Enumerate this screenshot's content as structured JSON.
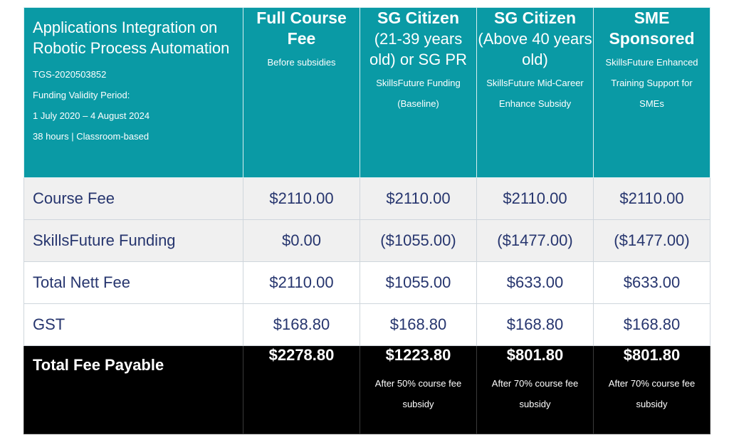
{
  "header": {
    "course_title": "Applications Integration on Robotic Process Automation",
    "course_code": "TGS-2020503852",
    "funding_validity_label": "Funding Validity Period:",
    "funding_validity_dates": "1 July 2020 – 4 August 2024",
    "duration_mode": "38 hours | Classroom-based",
    "columns": [
      {
        "title": "Full Course Fee",
        "subtitle": "",
        "note": "Before subsidies"
      },
      {
        "title": "SG Citizen",
        "subtitle": "(21-39 years old) or SG PR",
        "note": "SkillsFuture Funding (Baseline)"
      },
      {
        "title": "SG Citizen",
        "subtitle": "(Above 40 years old)",
        "note": "SkillsFuture Mid-Career Enhance Subsidy"
      },
      {
        "title": "SME Sponsored",
        "subtitle": "",
        "note": "SkillsFuture Enhanced Training Support for SMEs"
      }
    ]
  },
  "rows": [
    {
      "label": "Course Fee",
      "values": [
        "$2110.00",
        "$2110.00",
        "$2110.00",
        "$2110.00"
      ]
    },
    {
      "label": "SkillsFuture Funding",
      "values": [
        "$0.00",
        "($1055.00)",
        "($1477.00)",
        "($1477.00)"
      ]
    },
    {
      "label": "Total Nett Fee",
      "values": [
        "$2110.00",
        "$1055.00",
        "$633.00",
        "$633.00"
      ]
    },
    {
      "label": "GST",
      "values": [
        "$168.80",
        "$168.80",
        "$168.80",
        "$168.80"
      ]
    }
  ],
  "total": {
    "label": "Total Fee Payable",
    "values": [
      "$2278.80",
      "$1223.80",
      "$801.80",
      "$801.80"
    ],
    "notes": [
      "",
      "After 50% course fee subsidy",
      "After 70% course fee subsidy",
      "After 70% course fee subsidy"
    ]
  },
  "colors": {
    "header_bg": "#0a9aa5",
    "text_navy": "#26356e",
    "row_grey": "#f0f0f0",
    "total_bg": "#000000"
  }
}
